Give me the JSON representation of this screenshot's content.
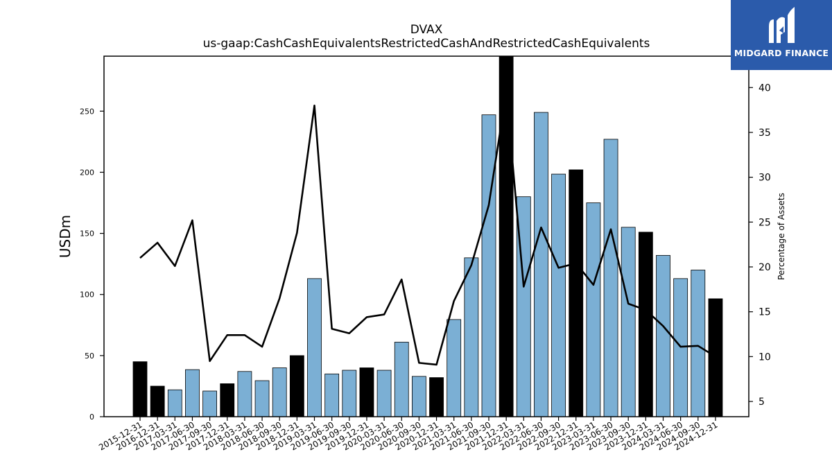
{
  "header": {
    "title": "DVAX",
    "subtitle": "us-gaap:CashCashEquivalentsRestrictedCashAndRestrictedCashEquivalents"
  },
  "logo": {
    "text": "MIDGARD FINANCE",
    "icon": "midgard-m-icon"
  },
  "colors": {
    "quarterly_bar": "#7bafd4",
    "annual_bar": "#000000",
    "line": "#000000",
    "logo_bg": "#2b5bab"
  },
  "chart_data": {
    "type": "bar",
    "title": "DVAX",
    "subtitle": "us-gaap:CashCashEquivalentsRestrictedCashAndRestrictedCashEquivalents",
    "ylabel": "USDm",
    "y2label": "Percentage of Assets",
    "ylim": [
      0,
      295
    ],
    "y2lim": [
      3.3,
      43.5
    ],
    "yticks": [
      0,
      50,
      100,
      150,
      200,
      250
    ],
    "y2ticks": [
      5,
      10,
      15,
      20,
      25,
      30,
      35,
      40
    ],
    "grid": false,
    "categories": [
      "2015-12-31",
      "2016-12-31",
      "2017-03-31",
      "2017-06-30",
      "2017-09-30",
      "2017-12-31",
      "2018-03-31",
      "2018-06-30",
      "2018-09-30",
      "2018-12-31",
      "2019-03-31",
      "2019-06-30",
      "2019-09-30",
      "2019-12-31",
      "2020-03-31",
      "2020-06-30",
      "2020-09-30",
      "2020-12-31",
      "2021-03-31",
      "2021-06-30",
      "2021-09-30",
      "2021-12-31",
      "2022-03-31",
      "2022-06-30",
      "2022-09-30",
      "2022-12-31",
      "2023-03-31",
      "2023-06-30",
      "2023-09-30",
      "2023-12-31",
      "2024-03-31",
      "2024-06-30",
      "2024-09-30",
      "2024-12-31"
    ],
    "series": [
      {
        "type": "bar",
        "axis": "left",
        "values": [
          45,
          25,
          22,
          38.5,
          21,
          27,
          37,
          29.5,
          40,
          50,
          113,
          35,
          38,
          40,
          38,
          61,
          33,
          32,
          79.5,
          130,
          247,
          295,
          180,
          249,
          198.5,
          202,
          175,
          227,
          155,
          151,
          132,
          113,
          120,
          96.5
        ],
        "annual": [
          true,
          true,
          false,
          false,
          false,
          true,
          false,
          false,
          false,
          true,
          false,
          false,
          false,
          true,
          false,
          false,
          false,
          true,
          false,
          false,
          false,
          true,
          false,
          false,
          false,
          true,
          false,
          false,
          false,
          true,
          false,
          false,
          false,
          true
        ]
      },
      {
        "type": "line",
        "axis": "right",
        "values": [
          21.0,
          22.7,
          20.1,
          25.2,
          9.5,
          12.4,
          12.4,
          11.1,
          16.5,
          23.8,
          38.0,
          13.1,
          12.6,
          14.4,
          14.7,
          18.6,
          9.3,
          9.1,
          16.2,
          20.2,
          26.9,
          39.5,
          17.8,
          24.4,
          19.9,
          20.4,
          18.0,
          24.2,
          15.9,
          15.2,
          13.4,
          11.1,
          11.2,
          10.0
        ]
      }
    ]
  }
}
